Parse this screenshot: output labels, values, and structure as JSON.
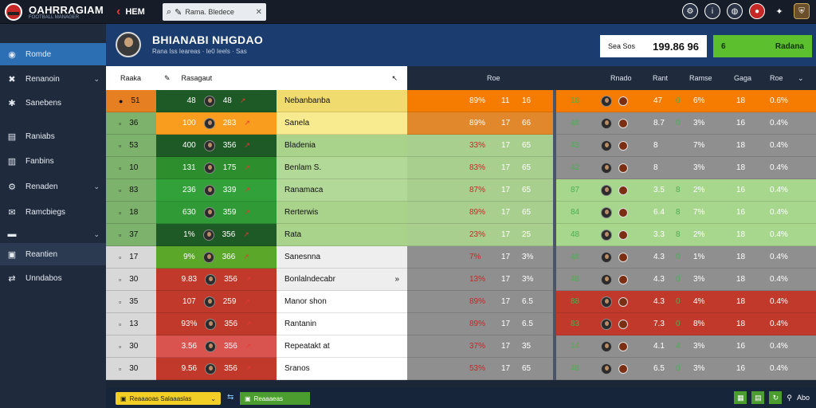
{
  "app": {
    "title": "OAHRRAGIAM",
    "subtitle": "FOOTBALL MANAGER"
  },
  "topbar": {
    "back_label": "HEM",
    "search_value": "Rama. Bledece",
    "icons": [
      "settings-icon",
      "info-icon",
      "globe-icon",
      "flag-icon",
      "more-icon",
      "club-crest-icon"
    ]
  },
  "sidebar": {
    "items": [
      {
        "label": "Romde",
        "icon": "home-icon",
        "active": true,
        "arrow": false
      },
      {
        "label": "Renanoin",
        "icon": "squad-icon",
        "active": false,
        "arrow": true
      },
      {
        "label": "Sanebens",
        "icon": "tactics-icon",
        "active": false,
        "arrow": false
      },
      {
        "label": "Raniabs",
        "icon": "document-icon",
        "active": false,
        "arrow": false
      },
      {
        "label": "Fanbins",
        "icon": "chart-icon",
        "active": false,
        "arrow": false
      },
      {
        "label": "Renaden",
        "icon": "gear-icon",
        "active": false,
        "arrow": true
      },
      {
        "label": "Ramcbiegs",
        "icon": "mail-icon",
        "active": false,
        "arrow": false
      },
      {
        "label": "",
        "icon": "list-icon",
        "active": false,
        "arrow": true
      },
      {
        "label": "Reantien",
        "icon": "calendar-icon",
        "active": false,
        "selected": true,
        "arrow": false
      },
      {
        "label": "Unndabos",
        "icon": "transfer-icon",
        "active": false,
        "arrow": false
      }
    ]
  },
  "header": {
    "player_name": "BHIANABI NHGDAO",
    "player_meta": "Rana Iss Ieareas · Ie0 Ieels · Sas",
    "value_label": "Sea Sos",
    "value_amount": "199.86 96",
    "action_number": "6",
    "action_label": "Radana"
  },
  "columns": {
    "rank": "Raaka",
    "name": "Rasagaut",
    "sort": "↖",
    "c1": "Roe",
    "c2": "Rnado",
    "c3": "Rant",
    "c4": "Ramse",
    "c5": "Gaga",
    "c6": "Roe"
  },
  "rows": [
    {
      "a": "51",
      "b": "48",
      "c": "48",
      "name": "Nebanbanba",
      "p1": "89%",
      "p2": "11",
      "p3": "16",
      "r1": "18",
      "r2": "47",
      "r3": "0",
      "r4": "6%",
      "r5": "18",
      "r6": "0.6%",
      "rank_color": "#e67e22",
      "left_color": "#1e5a25",
      "mid_color": "#f0dc6e",
      "stat_color": "#f57c00",
      "right_color": "#f57c00"
    },
    {
      "a": "36",
      "b": "100",
      "c": "283",
      "name": "Sanela",
      "p1": "89%",
      "p2": "17",
      "p3": "66",
      "r1": "48",
      "r2": "8.7",
      "r3": "0",
      "r4": "3%",
      "r5": "16",
      "r6": "0.4%",
      "rank_color": "#7cb26b",
      "left_color": "#f99d1e",
      "mid_color": "#f7ea8f",
      "stat_color": "#e0882b",
      "right_color": "#8f8f8f"
    },
    {
      "a": "53",
      "b": "400",
      "c": "356",
      "name": "Bladenia",
      "p1": "33%",
      "p2": "17",
      "p3": "65",
      "r1": "43",
      "r2": "8",
      "r3": "",
      "r4": "7%",
      "r5": "18",
      "r6": "0.4%",
      "rank_color": "#7cb26b",
      "left_color": "#1e5a25",
      "mid_color": "#a9d38b",
      "stat_color": "#a8cf8d",
      "right_color": "#8f8f8f"
    },
    {
      "a": "10",
      "b": "131",
      "c": "175",
      "name": "Benlam S.",
      "p1": "83%",
      "p2": "17",
      "p3": "65",
      "r1": "42",
      "r2": "8",
      "r3": "",
      "r4": "3%",
      "r5": "18",
      "r6": "0.4%",
      "rank_color": "#7cb26b",
      "left_color": "#2c8e2c",
      "mid_color": "#b3d998",
      "stat_color": "#a8cf8d",
      "right_color": "#8f8f8f"
    },
    {
      "a": "83",
      "b": "236",
      "c": "339",
      "name": "Ranamaca",
      "p1": "87%",
      "p2": "17",
      "p3": "65",
      "r1": "87",
      "r2": "3.5",
      "r3": "8",
      "r4": "2%",
      "r5": "16",
      "r6": "0.4%",
      "rank_color": "#7cb26b",
      "left_color": "#33a13a",
      "mid_color": "#b3d998",
      "stat_color": "#a8cf8d",
      "right_color": "#a7d78c"
    },
    {
      "a": "18",
      "b": "630",
      "c": "359",
      "name": "Rerterwis",
      "p1": "89%",
      "p2": "17",
      "p3": "65",
      "r1": "84",
      "r2": "6.4",
      "r3": "8",
      "r4": "7%",
      "r5": "16",
      "r6": "0.4%",
      "rank_color": "#7cb26b",
      "left_color": "#2f9a36",
      "mid_color": "#a9d38b",
      "stat_color": "#a8cf8d",
      "right_color": "#a7d78c"
    },
    {
      "a": "37",
      "b": "1%",
      "c": "356",
      "name": "Rata",
      "p1": "23%",
      "p2": "17",
      "p3": "25",
      "r1": "48",
      "r2": "3.3",
      "r3": "8",
      "r4": "2%",
      "r5": "18",
      "r6": "0.4%",
      "rank_color": "#7cb26b",
      "left_color": "#1e5a25",
      "mid_color": "#a9d38b",
      "stat_color": "#a8cf8d",
      "right_color": "#a7d78c"
    },
    {
      "a": "17",
      "b": "9%",
      "c": "366",
      "name": "Sanesnna",
      "p1": "7%",
      "p2": "17",
      "p3": "3%",
      "r1": "48",
      "r2": "4.3",
      "r3": "0",
      "r4": "1%",
      "r5": "18",
      "r6": "0.4%",
      "rank_color": "#d8d8d8",
      "left_color": "#5aa72a",
      "mid_color": "#eeeeee",
      "stat_color": "#8f8f8f",
      "right_color": "#8f8f8f"
    },
    {
      "a": "30",
      "b": "9.83",
      "c": "356",
      "name": "Bonlalndecabr",
      "p1": "13%",
      "p2": "17",
      "p3": "3%",
      "r1": "48",
      "r2": "4.3",
      "r3": "0",
      "r4": "3%",
      "r5": "18",
      "r6": "0.4%",
      "rank_color": "#d8d8d8",
      "left_color": "#c0392b",
      "mid_color": "#eeeeee",
      "stat_color": "#8f8f8f",
      "right_color": "#8f8f8f"
    },
    {
      "a": "35",
      "b": "107",
      "c": "259",
      "name": "Manor shon",
      "p1": "89%",
      "p2": "17",
      "p3": "6.5",
      "r1": "88",
      "r2": "4.3",
      "r3": "0",
      "r4": "4%",
      "r5": "18",
      "r6": "0.4%",
      "rank_color": "#d8d8d8",
      "left_color": "#c0392b",
      "mid_color": "#ffffff",
      "stat_color": "#8f8f8f",
      "right_color": "#c0392b"
    },
    {
      "a": "13",
      "b": "93%",
      "c": "356",
      "name": "Rantanin",
      "p1": "89%",
      "p2": "17",
      "p3": "6.5",
      "r1": "83",
      "r2": "7.3",
      "r3": "0",
      "r4": "8%",
      "r5": "18",
      "r6": "0.4%",
      "rank_color": "#d8d8d8",
      "left_color": "#c0392b",
      "mid_color": "#ffffff",
      "stat_color": "#8f8f8f",
      "right_color": "#c0392b"
    },
    {
      "a": "30",
      "b": "3.56",
      "c": "356",
      "name": "Repeatakt at",
      "p1": "37%",
      "p2": "17",
      "p3": "35",
      "r1": "14",
      "r2": "4.1",
      "r3": "4",
      "r4": "3%",
      "r5": "16",
      "r6": "0.4%",
      "rank_color": "#d8d8d8",
      "left_color": "#d9534f",
      "mid_color": "#ffffff",
      "stat_color": "#8f8f8f",
      "right_color": "#8f8f8f"
    },
    {
      "a": "30",
      "b": "9.56",
      "c": "356",
      "name": "Sranos",
      "p1": "53%",
      "p2": "17",
      "p3": "65",
      "r1": "48",
      "r2": "6.5",
      "r3": "0",
      "r4": "3%",
      "r5": "16",
      "r6": "0.4%",
      "rank_color": "#d8d8d8",
      "left_color": "#c0392b",
      "mid_color": "#ffffff",
      "stat_color": "#8f8f8f",
      "right_color": "#8f8f8f"
    }
  ],
  "statusbar": {
    "yellow_label": "Reaaaoas Salaaaslas",
    "green_label": "Reaaaeas",
    "right_label": "Abo"
  }
}
